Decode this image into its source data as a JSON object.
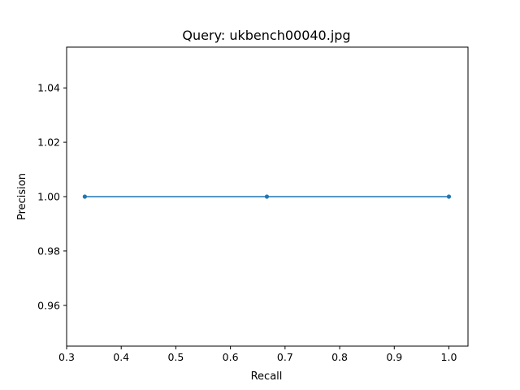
{
  "chart_data": {
    "type": "line",
    "title": "Query: ukbench00040.jpg",
    "xlabel": "Recall",
    "ylabel": "Precision",
    "xlim": [
      0.3,
      1.035
    ],
    "ylim": [
      0.945,
      1.055
    ],
    "xticks": [
      0.3,
      0.4,
      0.5,
      0.6,
      0.7,
      0.8,
      0.9,
      1.0
    ],
    "xtick_labels": [
      "0.3",
      "0.4",
      "0.5",
      "0.6",
      "0.7",
      "0.8",
      "0.9",
      "1.0"
    ],
    "yticks": [
      0.96,
      0.98,
      1.0,
      1.02,
      1.04
    ],
    "ytick_labels": [
      "0.96",
      "0.98",
      "1.00",
      "1.02",
      "1.04"
    ],
    "grid": false,
    "legend": "none",
    "series": [
      {
        "color": "#1f77b4",
        "marker": "dot",
        "x": [
          0.3333,
          0.6667,
          1.0
        ],
        "y": [
          1.0,
          1.0,
          1.0
        ]
      }
    ]
  }
}
